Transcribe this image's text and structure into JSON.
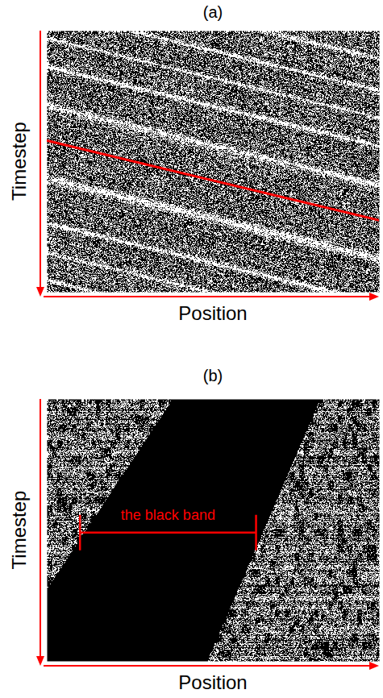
{
  "chart_data": [
    {
      "type": "spacetime",
      "title": "(a)",
      "x_label": "Position",
      "y_label": "Timestep",
      "xlim": [
        0,
        1
      ],
      "ylim": [
        0,
        1
      ],
      "xticks": [],
      "yticks": [],
      "tick_labels": false,
      "lines": [
        {
          "x": [
            0,
            1
          ],
          "y": [
            0.42,
            0.725
          ],
          "color": "#ff0000"
        }
      ]
    },
    {
      "type": "spacetime",
      "title": "(b)",
      "x_label": "Position",
      "y_label": "Timestep",
      "xlim": [
        0,
        1
      ],
      "ylim": [
        0,
        1
      ],
      "xticks": [],
      "yticks": [],
      "tick_labels": false,
      "band": {
        "x": [
          0.376,
          0.82,
          0.48,
          0,
          0
        ],
        "y": [
          0,
          0,
          1,
          1,
          0.72
        ],
        "color": "#000000"
      },
      "annotations": [
        {
          "text": "the black band",
          "x": [
            0.1,
            0.63
          ],
          "y": 0.51,
          "color": "#ff0000"
        }
      ]
    }
  ]
}
